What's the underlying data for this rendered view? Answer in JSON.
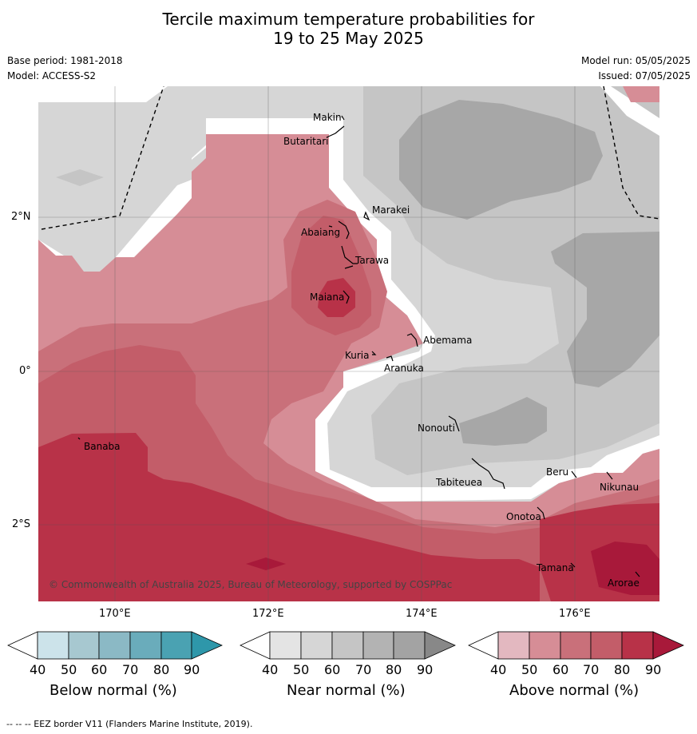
{
  "header": {
    "title_line1": "Tercile maximum temperature probabilities for",
    "title_line2": "19 to 25 May 2025",
    "base_period": "Base period: 1981-2018",
    "model": "Model: ACCESS-S2",
    "model_run": "Model run: 05/05/2025",
    "issued": "Issued: 07/05/2025"
  },
  "map": {
    "copyright": "© Commonwealth of Australia 2025, Bureau of Meteorology, supported by COSPPac",
    "lon_ticks": [
      "170°E",
      "172°E",
      "174°E",
      "176°E"
    ],
    "lat_ticks": [
      "2°N",
      "0°",
      "2°S"
    ],
    "places": [
      "Makin",
      "Butaritari",
      "Marakei",
      "Abaiang",
      "Tarawa",
      "Maiana",
      "Abemama",
      "Kuria",
      "Aranuka",
      "Banaba",
      "Nonouti",
      "Tabiteuea",
      "Beru",
      "Nikunau",
      "Onotoa",
      "Tamana",
      "Arorae"
    ]
  },
  "colorbars": {
    "ticks": [
      "40",
      "50",
      "60",
      "70",
      "80",
      "90"
    ],
    "below": {
      "title": "Below normal (%)",
      "colors": [
        "#ffffff",
        "#cce3ea",
        "#a7c8d0",
        "#8bb9c5",
        "#6aacbb",
        "#4aa2b2",
        "#2e97aa"
      ]
    },
    "near": {
      "title": "Near normal (%)",
      "colors": [
        "#ffffff",
        "#e4e4e4",
        "#d6d6d6",
        "#c5c5c5",
        "#b3b3b3",
        "#a3a3a3",
        "#888888"
      ]
    },
    "above": {
      "title": "Above normal (%)",
      "colors": [
        "#ffffff",
        "#e3b8c0",
        "#d68d96",
        "#c9707a",
        "#c35d69",
        "#b83248",
        "#a8193a"
      ]
    }
  },
  "footnote": "--  --  -- EEZ border V11 (Flanders Marine Institute, 2019)."
}
